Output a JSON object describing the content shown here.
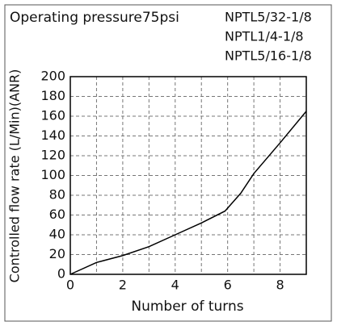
{
  "chart_data": {
    "type": "line",
    "title": "Operating pressure75psi",
    "annotations": [
      "NPTL5/32-1/8",
      "NPTL1/4-1/8",
      "NPTL5/16-1/8"
    ],
    "x_label": "Number of turns",
    "y_label": "Controlled flow rate  (L/Min)(ANR)",
    "series": [
      {
        "color": "#000000",
        "x": [
          0,
          1,
          2,
          3,
          4,
          5,
          5.9,
          6.5,
          7,
          8,
          9
        ],
        "values": [
          0,
          12,
          19,
          28,
          40,
          52,
          64,
          82,
          102,
          133,
          165
        ]
      }
    ],
    "xlim": [
      0,
      9
    ],
    "xticks": [
      0,
      2,
      4,
      6,
      8
    ],
    "xminorticks": [
      1,
      3,
      5,
      7
    ],
    "ylim": [
      0,
      200
    ],
    "yticks": [
      0,
      20,
      40,
      60,
      80,
      100,
      120,
      140,
      160,
      180,
      200
    ],
    "grid": true
  }
}
